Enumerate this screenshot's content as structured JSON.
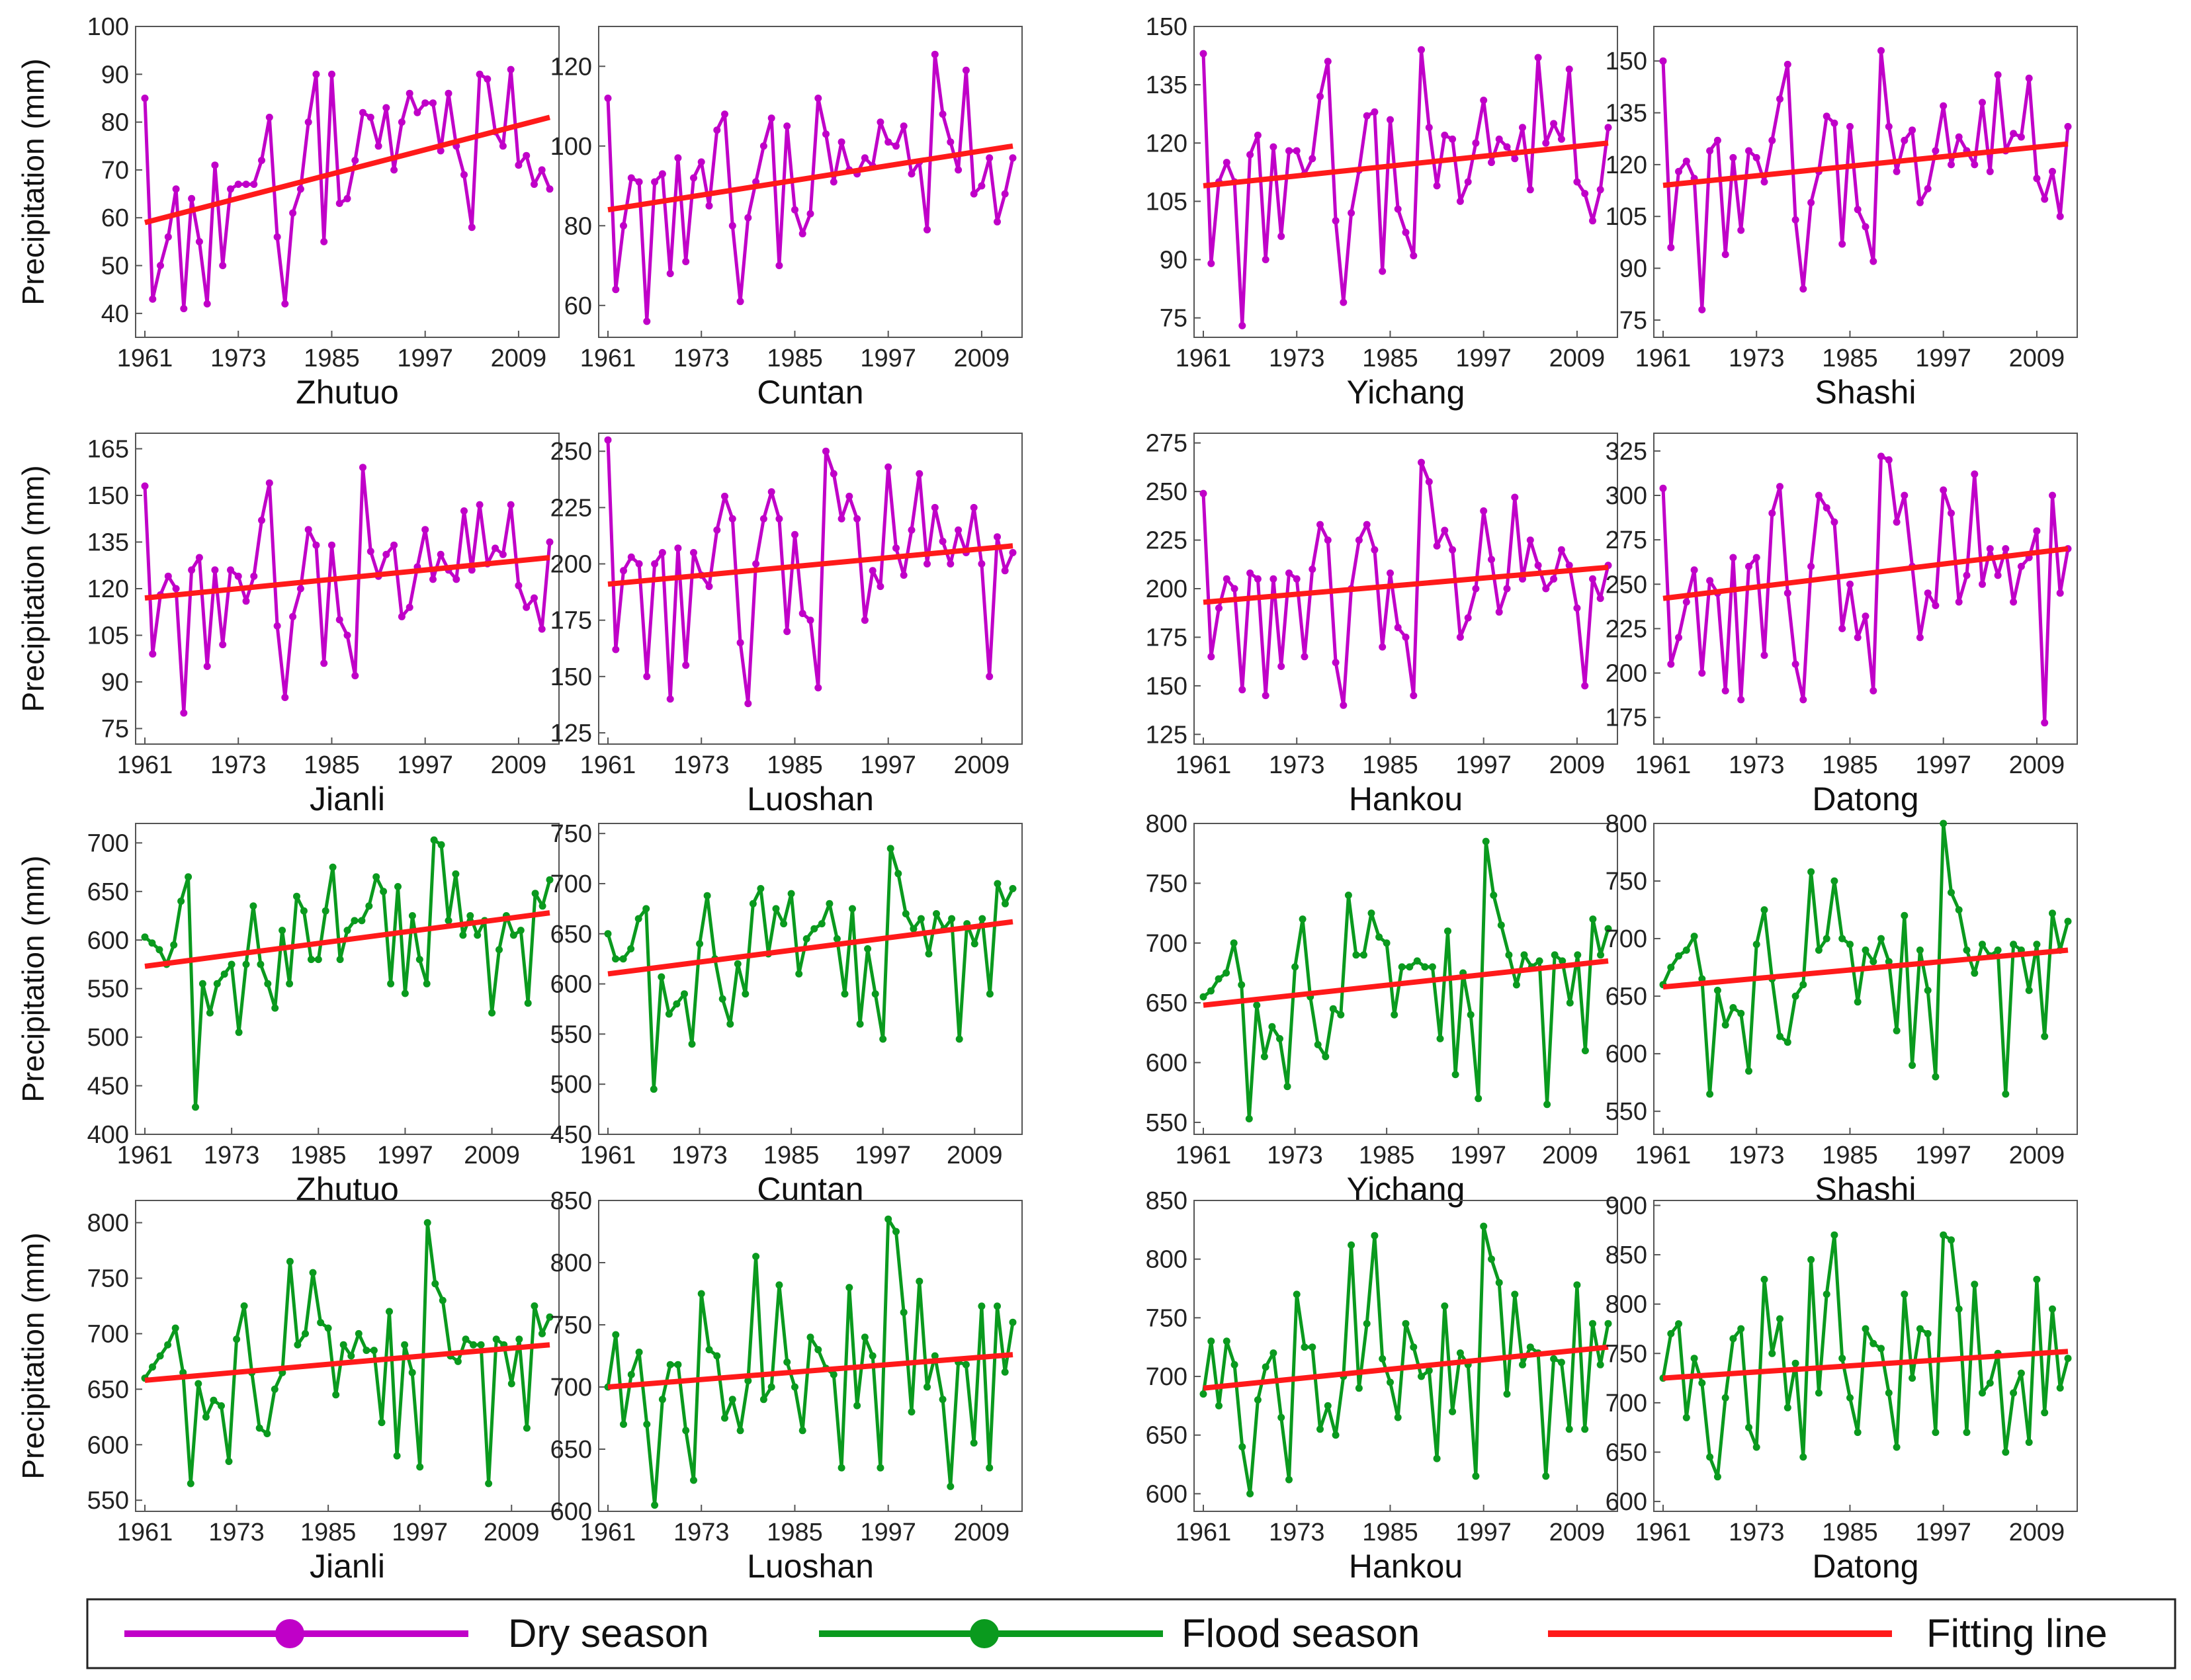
{
  "figure": {
    "ylabel": "Precipitation (mm)"
  },
  "legend": {
    "dry": {
      "label": "Dry season",
      "color": "#c000c8"
    },
    "flood": {
      "label": "Flood season",
      "color": "#0a9a1e"
    },
    "fit": {
      "label": "Fitting line",
      "color": "#ff1a1a"
    }
  },
  "chart_data": [
    {
      "type": "line",
      "station": "Zhutuo",
      "season": "dry",
      "xticks": [
        1961,
        1973,
        1985,
        1997,
        2009
      ],
      "ylim": [
        35,
        100
      ],
      "yticks": [
        40,
        50,
        60,
        70,
        80,
        90,
        100
      ],
      "values": [
        85,
        43,
        50,
        56,
        66,
        41,
        64,
        55,
        42,
        71,
        50,
        66,
        67,
        67,
        67,
        72,
        81,
        56,
        42,
        61,
        66,
        80,
        90,
        55,
        90,
        63,
        64,
        72,
        82,
        81,
        75,
        83,
        70,
        80,
        86,
        82,
        84,
        84,
        74,
        86,
        75,
        69,
        58,
        90,
        89,
        78,
        75,
        91,
        71,
        73,
        67,
        70,
        66
      ],
      "fit": [
        59,
        81
      ]
    },
    {
      "type": "line",
      "station": "Cuntan",
      "season": "dry",
      "xticks": [
        1961,
        1973,
        1985,
        1997,
        2009
      ],
      "ylim": [
        52,
        130
      ],
      "yticks": [
        60,
        80,
        100,
        120
      ],
      "values": [
        112,
        64,
        80,
        92,
        91,
        56,
        91,
        93,
        68,
        97,
        71,
        92,
        96,
        85,
        104,
        108,
        80,
        61,
        82,
        91,
        100,
        107,
        70,
        105,
        84,
        78,
        83,
        112,
        103,
        91,
        101,
        94,
        93,
        97,
        95,
        106,
        101,
        100,
        105,
        93,
        96,
        79,
        123,
        108,
        101,
        94,
        119,
        88,
        90,
        97,
        81,
        88,
        97
      ],
      "fit": [
        84,
        100
      ]
    },
    {
      "type": "line",
      "station": "Yichang",
      "season": "dry",
      "xticks": [
        1961,
        1973,
        1985,
        1997,
        2009
      ],
      "ylim": [
        70,
        150
      ],
      "yticks": [
        75,
        90,
        105,
        120,
        135,
        150
      ],
      "values": [
        143,
        89,
        110,
        115,
        110,
        73,
        117,
        122,
        90,
        119,
        96,
        118,
        118,
        112,
        116,
        132,
        141,
        100,
        79,
        102,
        113,
        127,
        128,
        87,
        126,
        103,
        97,
        91,
        144,
        124,
        109,
        122,
        121,
        105,
        110,
        120,
        131,
        115,
        121,
        119,
        116,
        124,
        108,
        142,
        120,
        125,
        121,
        139,
        110,
        107,
        100,
        108,
        124
      ],
      "fit": [
        109,
        120
      ]
    },
    {
      "type": "line",
      "station": "Shashi",
      "season": "dry",
      "xticks": [
        1961,
        1973,
        1985,
        1997,
        2009
      ],
      "ylim": [
        70,
        160
      ],
      "yticks": [
        75,
        90,
        105,
        120,
        135,
        150
      ],
      "values": [
        150,
        96,
        118,
        121,
        116,
        78,
        124,
        127,
        94,
        122,
        101,
        124,
        122,
        115,
        127,
        139,
        149,
        104,
        84,
        109,
        118,
        134,
        132,
        97,
        131,
        107,
        102,
        92,
        153,
        131,
        118,
        127,
        130,
        109,
        113,
        124,
        137,
        120,
        128,
        124,
        120,
        138,
        118,
        146,
        124,
        129,
        128,
        145,
        116,
        110,
        118,
        105,
        131
      ],
      "fit": [
        114,
        126
      ]
    },
    {
      "type": "line",
      "station": "Jianli",
      "season": "dry",
      "xticks": [
        1961,
        1973,
        1985,
        1997,
        2009
      ],
      "ylim": [
        70,
        170
      ],
      "yticks": [
        75,
        90,
        105,
        120,
        135,
        150,
        165
      ],
      "values": [
        153,
        99,
        118,
        124,
        120,
        80,
        126,
        130,
        95,
        126,
        102,
        126,
        124,
        116,
        124,
        142,
        154,
        108,
        85,
        111,
        120,
        139,
        134,
        96,
        134,
        110,
        105,
        92,
        159,
        132,
        124,
        131,
        134,
        111,
        114,
        127,
        139,
        123,
        131,
        126,
        123,
        145,
        126,
        147,
        128,
        133,
        131,
        147,
        121,
        114,
        117,
        107,
        135
      ],
      "fit": [
        117,
        130
      ]
    },
    {
      "type": "line",
      "station": "Luoshan",
      "season": "dry",
      "xticks": [
        1961,
        1973,
        1985,
        1997,
        2009
      ],
      "ylim": [
        120,
        258
      ],
      "yticks": [
        125,
        150,
        175,
        200,
        225,
        250
      ],
      "values": [
        255,
        162,
        197,
        203,
        200,
        150,
        200,
        205,
        140,
        207,
        155,
        205,
        195,
        190,
        215,
        230,
        220,
        165,
        138,
        200,
        220,
        232,
        220,
        170,
        213,
        178,
        175,
        145,
        250,
        240,
        220,
        230,
        220,
        175,
        197,
        190,
        243,
        207,
        195,
        215,
        240,
        200,
        225,
        210,
        200,
        215,
        205,
        225,
        200,
        150,
        212,
        197,
        205
      ],
      "fit": [
        191,
        208
      ]
    },
    {
      "type": "line",
      "station": "Hankou",
      "season": "dry",
      "xticks": [
        1961,
        1973,
        1985,
        1997,
        2009
      ],
      "ylim": [
        120,
        280
      ],
      "yticks": [
        125,
        150,
        175,
        200,
        225,
        250,
        275
      ],
      "values": [
        249,
        165,
        190,
        205,
        200,
        148,
        208,
        205,
        145,
        205,
        160,
        208,
        205,
        165,
        210,
        233,
        225,
        162,
        140,
        200,
        225,
        233,
        220,
        170,
        208,
        180,
        175,
        145,
        265,
        255,
        222,
        230,
        220,
        175,
        185,
        200,
        240,
        215,
        188,
        200,
        247,
        205,
        225,
        212,
        200,
        205,
        220,
        212,
        190,
        150,
        205,
        195,
        212
      ],
      "fit": [
        193,
        211
      ]
    },
    {
      "type": "line",
      "station": "Datong",
      "season": "dry",
      "xticks": [
        1961,
        1973,
        1985,
        1997,
        2009
      ],
      "ylim": [
        160,
        335
      ],
      "yticks": [
        175,
        200,
        225,
        250,
        275,
        300,
        325
      ],
      "values": [
        304,
        205,
        220,
        240,
        258,
        200,
        252,
        245,
        190,
        265,
        185,
        260,
        265,
        210,
        290,
        305,
        245,
        205,
        185,
        260,
        300,
        293,
        285,
        225,
        250,
        220,
        232,
        190,
        322,
        320,
        285,
        300,
        260,
        220,
        245,
        238,
        303,
        290,
        240,
        255,
        312,
        250,
        270,
        255,
        270,
        240,
        260,
        265,
        280,
        172,
        300,
        245,
        270
      ],
      "fit": [
        242,
        270
      ]
    },
    {
      "type": "line",
      "station": "Zhutuo",
      "season": "flood",
      "xticks": [
        1961,
        1973,
        1985,
        1997,
        2009
      ],
      "ylim": [
        400,
        720
      ],
      "yticks": [
        400,
        450,
        500,
        550,
        600,
        650,
        700
      ],
      "values": [
        603,
        597,
        590,
        575,
        595,
        640,
        665,
        428,
        555,
        525,
        555,
        565,
        575,
        505,
        575,
        635,
        575,
        555,
        530,
        610,
        555,
        645,
        630,
        580,
        580,
        630,
        675,
        580,
        610,
        620,
        620,
        635,
        665,
        650,
        555,
        655,
        545,
        625,
        580,
        555,
        703,
        698,
        620,
        668,
        605,
        625,
        605,
        620,
        525,
        590,
        625,
        605,
        610,
        535,
        648,
        635,
        662
      ],
      "fit": [
        573,
        628
      ]
    },
    {
      "type": "line",
      "station": "Cuntan",
      "season": "flood",
      "xticks": [
        1961,
        1973,
        1985,
        1997,
        2009
      ],
      "ylim": [
        450,
        760
      ],
      "yticks": [
        450,
        500,
        550,
        600,
        650,
        700,
        750
      ],
      "values": [
        650,
        625,
        625,
        635,
        665,
        675,
        495,
        607,
        570,
        580,
        590,
        540,
        640,
        688,
        625,
        585,
        560,
        620,
        590,
        680,
        695,
        630,
        675,
        660,
        690,
        610,
        645,
        655,
        660,
        680,
        645,
        590,
        675,
        560,
        635,
        590,
        545,
        735,
        710,
        670,
        655,
        665,
        630,
        670,
        655,
        665,
        545,
        660,
        640,
        665,
        590,
        700,
        680,
        695
      ],
      "fit": [
        610,
        662
      ]
    },
    {
      "type": "line",
      "station": "Yichang",
      "season": "flood",
      "xticks": [
        1961,
        1973,
        1985,
        1997,
        2009
      ],
      "ylim": [
        540,
        800
      ],
      "yticks": [
        550,
        600,
        650,
        700,
        750,
        800
      ],
      "values": [
        655,
        660,
        670,
        675,
        700,
        665,
        553,
        648,
        605,
        630,
        620,
        580,
        680,
        720,
        655,
        615,
        605,
        645,
        640,
        740,
        690,
        690,
        725,
        705,
        700,
        640,
        680,
        680,
        685,
        680,
        680,
        620,
        710,
        590,
        675,
        640,
        570,
        785,
        740,
        715,
        690,
        665,
        690,
        680,
        685,
        565,
        690,
        685,
        650,
        690,
        610,
        720,
        690,
        712
      ],
      "fit": [
        648,
        685
      ]
    },
    {
      "type": "line",
      "station": "Shashi",
      "season": "flood",
      "xticks": [
        1961,
        1973,
        1985,
        1997,
        2009
      ],
      "ylim": [
        530,
        800
      ],
      "yticks": [
        550,
        600,
        650,
        700,
        750,
        800
      ],
      "values": [
        660,
        675,
        685,
        690,
        702,
        665,
        565,
        655,
        625,
        640,
        635,
        585,
        695,
        725,
        665,
        615,
        610,
        650,
        660,
        758,
        690,
        700,
        750,
        700,
        695,
        645,
        690,
        680,
        700,
        680,
        620,
        720,
        590,
        690,
        655,
        580,
        800,
        740,
        725,
        690,
        670,
        695,
        685,
        690,
        565,
        695,
        690,
        655,
        695,
        615,
        722,
        690,
        715
      ],
      "fit": [
        658,
        690
      ]
    },
    {
      "type": "line",
      "station": "Jianli",
      "season": "flood",
      "xticks": [
        1961,
        1973,
        1985,
        1997,
        2009
      ],
      "ylim": [
        540,
        820
      ],
      "yticks": [
        550,
        600,
        650,
        700,
        750,
        800
      ],
      "values": [
        660,
        670,
        680,
        690,
        705,
        665,
        565,
        655,
        625,
        640,
        635,
        585,
        695,
        725,
        665,
        615,
        610,
        650,
        665,
        765,
        690,
        700,
        755,
        710,
        705,
        645,
        690,
        680,
        700,
        685,
        685,
        620,
        720,
        590,
        690,
        665,
        580,
        800,
        745,
        730,
        680,
        675,
        695,
        690,
        690,
        565,
        695,
        690,
        655,
        695,
        615,
        725,
        700,
        715
      ],
      "fit": [
        658,
        690
      ]
    },
    {
      "type": "line",
      "station": "Luoshan",
      "season": "flood",
      "xticks": [
        1961,
        1973,
        1985,
        1997,
        2009
      ],
      "ylim": [
        600,
        850
      ],
      "yticks": [
        600,
        650,
        700,
        750,
        800,
        850
      ],
      "values": [
        700,
        742,
        670,
        710,
        728,
        670,
        605,
        690,
        718,
        718,
        665,
        625,
        775,
        730,
        725,
        675,
        690,
        665,
        705,
        805,
        690,
        700,
        782,
        720,
        700,
        665,
        740,
        730,
        715,
        710,
        635,
        780,
        685,
        740,
        725,
        635,
        835,
        825,
        760,
        680,
        785,
        700,
        725,
        690,
        620,
        720,
        718,
        655,
        765,
        635,
        765,
        712,
        752
      ],
      "fit": [
        700,
        726
      ]
    },
    {
      "type": "line",
      "station": "Hankou",
      "season": "flood",
      "xticks": [
        1961,
        1973,
        1985,
        1997,
        2009
      ],
      "ylim": [
        585,
        850
      ],
      "yticks": [
        600,
        650,
        700,
        750,
        800,
        850
      ],
      "values": [
        685,
        730,
        675,
        730,
        710,
        640,
        600,
        680,
        708,
        720,
        665,
        612,
        770,
        725,
        725,
        655,
        675,
        650,
        700,
        812,
        690,
        745,
        820,
        715,
        695,
        665,
        745,
        725,
        700,
        705,
        630,
        760,
        670,
        720,
        710,
        615,
        828,
        800,
        780,
        685,
        770,
        710,
        725,
        720,
        615,
        715,
        712,
        655,
        778,
        655,
        745,
        710,
        745
      ],
      "fit": [
        690,
        725
      ]
    },
    {
      "type": "line",
      "station": "Datong",
      "season": "flood",
      "xticks": [
        1961,
        1973,
        1985,
        1997,
        2009
      ],
      "ylim": [
        590,
        905
      ],
      "yticks": [
        600,
        650,
        700,
        750,
        800,
        850,
        900
      ],
      "values": [
        725,
        770,
        780,
        685,
        745,
        720,
        645,
        625,
        705,
        765,
        775,
        675,
        655,
        825,
        750,
        785,
        695,
        740,
        645,
        845,
        710,
        810,
        870,
        745,
        705,
        670,
        775,
        760,
        755,
        710,
        655,
        810,
        725,
        775,
        770,
        670,
        870,
        865,
        795,
        670,
        820,
        710,
        720,
        750,
        650,
        710,
        730,
        660,
        825,
        690,
        795,
        715,
        745
      ],
      "fit": [
        725,
        752
      ]
    }
  ]
}
